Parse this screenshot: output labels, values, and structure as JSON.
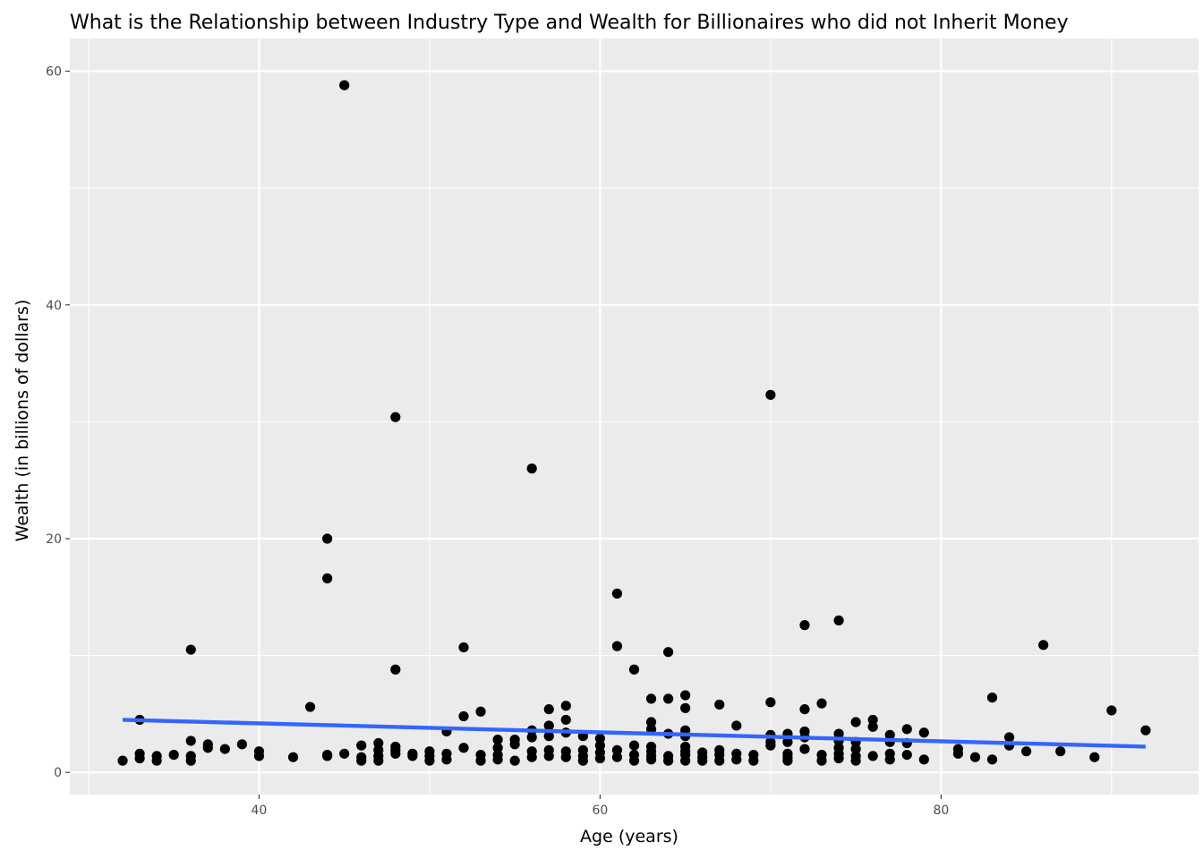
{
  "chart_data": {
    "type": "scatter",
    "title": "What is the Relationship between Industry Type and Wealth for Billionaires who did not Inherit Money",
    "xlabel": "Age (years)",
    "ylabel": "Wealth (in billions of dollars)",
    "xlim": [
      28.9,
      95.1
    ],
    "ylim": [
      -1.9,
      62.8
    ],
    "x_ticks": [
      40,
      60,
      80
    ],
    "x_tick_labels": [
      "40",
      "60",
      "80"
    ],
    "y_ticks": [
      0,
      20,
      40,
      60
    ],
    "y_tick_labels": [
      "0",
      "20",
      "40",
      "60"
    ],
    "grid": true,
    "background": "#ebebeb",
    "grid_color": "#ffffff",
    "point_color": "#000000",
    "trend_color": "#3366ff",
    "trend_line": {
      "x": [
        32,
        92
      ],
      "y": [
        4.5,
        2.2
      ]
    },
    "points": [
      [
        32,
        1.0
      ],
      [
        33,
        4.5
      ],
      [
        33,
        1.6
      ],
      [
        33,
        1.2
      ],
      [
        34,
        1.4
      ],
      [
        34,
        1.0
      ],
      [
        35,
        1.5
      ],
      [
        36,
        10.5
      ],
      [
        36,
        2.7
      ],
      [
        36,
        1.4
      ],
      [
        36,
        1.0
      ],
      [
        37,
        2.4
      ],
      [
        37,
        2.1
      ],
      [
        38,
        2.0
      ],
      [
        39,
        2.4
      ],
      [
        40,
        1.8
      ],
      [
        40,
        1.4
      ],
      [
        42,
        1.3
      ],
      [
        43,
        5.6
      ],
      [
        44,
        20.0
      ],
      [
        44,
        16.6
      ],
      [
        44,
        1.5
      ],
      [
        44,
        1.4
      ],
      [
        45,
        58.8
      ],
      [
        45,
        1.6
      ],
      [
        46,
        2.3
      ],
      [
        46,
        1.3
      ],
      [
        46,
        1.0
      ],
      [
        47,
        2.5
      ],
      [
        47,
        1.9
      ],
      [
        47,
        1.4
      ],
      [
        47,
        1.0
      ],
      [
        48,
        30.4
      ],
      [
        48,
        8.8
      ],
      [
        48,
        2.2
      ],
      [
        48,
        1.9
      ],
      [
        48,
        1.6
      ],
      [
        49,
        1.6
      ],
      [
        49,
        1.4
      ],
      [
        50,
        1.8
      ],
      [
        50,
        1.4
      ],
      [
        50,
        1.0
      ],
      [
        51,
        3.5
      ],
      [
        51,
        1.6
      ],
      [
        51,
        1.1
      ],
      [
        52,
        10.7
      ],
      [
        52,
        4.8
      ],
      [
        52,
        2.1
      ],
      [
        53,
        5.2
      ],
      [
        53,
        1.5
      ],
      [
        53,
        1.0
      ],
      [
        54,
        2.8
      ],
      [
        54,
        2.1
      ],
      [
        54,
        1.5
      ],
      [
        54,
        1.1
      ],
      [
        55,
        2.8
      ],
      [
        55,
        2.4
      ],
      [
        55,
        1.0
      ],
      [
        56,
        26.0
      ],
      [
        56,
        3.6
      ],
      [
        56,
        3.0
      ],
      [
        56,
        1.8
      ],
      [
        56,
        1.3
      ],
      [
        57,
        5.4
      ],
      [
        57,
        4.0
      ],
      [
        57,
        3.1
      ],
      [
        57,
        1.9
      ],
      [
        57,
        1.4
      ],
      [
        58,
        5.7
      ],
      [
        58,
        4.5
      ],
      [
        58,
        3.4
      ],
      [
        58,
        1.8
      ],
      [
        58,
        1.3
      ],
      [
        59,
        3.1
      ],
      [
        59,
        1.9
      ],
      [
        59,
        1.4
      ],
      [
        59,
        1.0
      ],
      [
        60,
        2.9
      ],
      [
        60,
        2.3
      ],
      [
        60,
        1.7
      ],
      [
        60,
        1.2
      ],
      [
        61,
        15.3
      ],
      [
        61,
        10.8
      ],
      [
        61,
        1.9
      ],
      [
        61,
        1.3
      ],
      [
        62,
        8.8
      ],
      [
        62,
        2.3
      ],
      [
        62,
        1.5
      ],
      [
        62,
        1.0
      ],
      [
        63,
        6.3
      ],
      [
        63,
        4.3
      ],
      [
        63,
        3.7
      ],
      [
        63,
        2.2
      ],
      [
        63,
        1.8
      ],
      [
        63,
        1.4
      ],
      [
        63,
        1.1
      ],
      [
        64,
        10.3
      ],
      [
        64,
        6.3
      ],
      [
        64,
        3.3
      ],
      [
        64,
        1.4
      ],
      [
        64,
        1.0
      ],
      [
        65,
        6.6
      ],
      [
        65,
        5.5
      ],
      [
        65,
        3.6
      ],
      [
        65,
        3.1
      ],
      [
        65,
        2.2
      ],
      [
        65,
        1.8
      ],
      [
        65,
        1.5
      ],
      [
        65,
        1.0
      ],
      [
        66,
        1.7
      ],
      [
        66,
        1.3
      ],
      [
        66,
        1.0
      ],
      [
        67,
        5.8
      ],
      [
        67,
        1.9
      ],
      [
        67,
        1.5
      ],
      [
        67,
        1.0
      ],
      [
        68,
        4.0
      ],
      [
        68,
        1.6
      ],
      [
        68,
        1.1
      ],
      [
        69,
        1.5
      ],
      [
        69,
        1.0
      ],
      [
        70,
        32.3
      ],
      [
        70,
        6.0
      ],
      [
        70,
        3.2
      ],
      [
        70,
        2.6
      ],
      [
        70,
        2.3
      ],
      [
        71,
        3.3
      ],
      [
        71,
        2.6
      ],
      [
        71,
        1.6
      ],
      [
        71,
        1.3
      ],
      [
        71,
        1.0
      ],
      [
        72,
        12.6
      ],
      [
        72,
        5.4
      ],
      [
        72,
        3.5
      ],
      [
        72,
        3.0
      ],
      [
        72,
        2.0
      ],
      [
        73,
        5.9
      ],
      [
        73,
        1.5
      ],
      [
        73,
        1.0
      ],
      [
        74,
        13.0
      ],
      [
        74,
        3.3
      ],
      [
        74,
        2.7
      ],
      [
        74,
        2.1
      ],
      [
        74,
        1.6
      ],
      [
        74,
        1.2
      ],
      [
        75,
        4.3
      ],
      [
        75,
        2.6
      ],
      [
        75,
        2.0
      ],
      [
        75,
        1.4
      ],
      [
        75,
        1.0
      ],
      [
        76,
        4.5
      ],
      [
        76,
        3.9
      ],
      [
        76,
        1.4
      ],
      [
        77,
        3.2
      ],
      [
        77,
        2.6
      ],
      [
        77,
        1.6
      ],
      [
        77,
        1.1
      ],
      [
        78,
        3.7
      ],
      [
        78,
        2.5
      ],
      [
        78,
        1.5
      ],
      [
        79,
        3.4
      ],
      [
        79,
        1.1
      ],
      [
        81,
        2.0
      ],
      [
        81,
        1.6
      ],
      [
        82,
        1.3
      ],
      [
        83,
        6.4
      ],
      [
        83,
        1.1
      ],
      [
        84,
        3.0
      ],
      [
        84,
        2.3
      ],
      [
        85,
        1.8
      ],
      [
        86,
        10.9
      ],
      [
        87,
        1.8
      ],
      [
        89,
        1.3
      ],
      [
        90,
        5.3
      ],
      [
        92,
        3.6
      ]
    ]
  }
}
